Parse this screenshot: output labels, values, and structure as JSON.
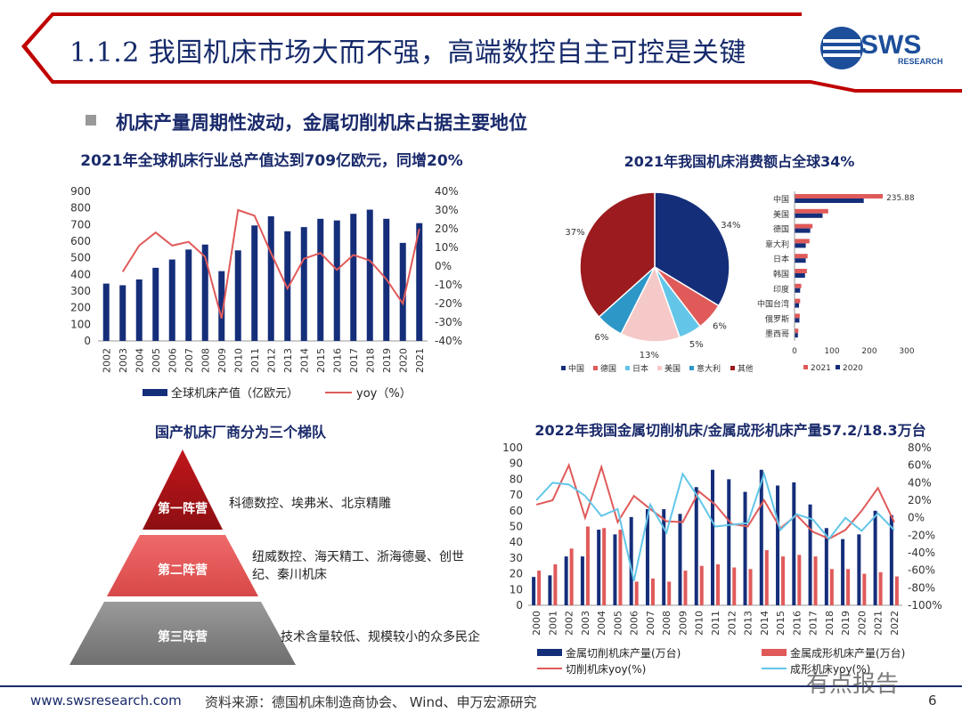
{
  "header": {
    "title": "1.1.2 我国机床市场大而不强，高端数控自主可控是关键",
    "subtitle": "机床产量周期性波动，金属切削机床占据主要地位",
    "logo_text": "SWS",
    "logo_sub": "RESEARCH"
  },
  "colors": {
    "navy": "#152e7a",
    "red": "#e05a5a",
    "darkred": "#9b1b1e",
    "lightblue": "#63c6e8",
    "pink": "#f6c9c9",
    "grey": "#7f7f7f"
  },
  "chart_data": [
    {
      "type": "bar",
      "title": "2021年全球机床行业总产值达到709亿欧元，同增20%",
      "categories": [
        "2002",
        "2003",
        "2004",
        "2005",
        "2006",
        "2007",
        "2008",
        "2009",
        "2010",
        "2011",
        "2012",
        "2013",
        "2014",
        "2015",
        "2016",
        "2017",
        "2018",
        "2019",
        "2020",
        "2021"
      ],
      "series": [
        {
          "name": "全球机床产值（亿欧元）",
          "type": "bar",
          "axis": "left",
          "values": [
            345,
            335,
            370,
            440,
            490,
            550,
            580,
            420,
            545,
            695,
            750,
            660,
            685,
            735,
            725,
            765,
            790,
            735,
            590,
            709
          ]
        },
        {
          "name": "yoy（%）",
          "type": "line",
          "axis": "right",
          "values": [
            null,
            -3,
            11,
            18,
            11,
            13,
            5,
            -28,
            30,
            27,
            7,
            -12,
            4,
            7,
            -2,
            6,
            3,
            -7,
            -20,
            20
          ]
        }
      ],
      "ylim": [
        0,
        900
      ],
      "yticks": [
        0,
        100,
        200,
        300,
        400,
        500,
        600,
        700,
        800,
        900
      ],
      "y2lim": [
        -40,
        40
      ],
      "y2ticks": [
        "-40%",
        "-30%",
        "-20%",
        "-10%",
        "0%",
        "10%",
        "20%",
        "30%",
        "40%"
      ]
    },
    {
      "type": "pie",
      "title": "2021年我国机床消费额占全球34%",
      "labels": [
        "中国",
        "德国",
        "日本",
        "美国",
        "意大利",
        "其他"
      ],
      "values": [
        34,
        6,
        5,
        13,
        6,
        37
      ],
      "slice_labels": [
        "34%",
        "6%",
        "5%",
        "13%",
        "6%",
        "37%"
      ]
    },
    {
      "type": "bar",
      "orientation": "horizontal",
      "categories": [
        "中国",
        "美国",
        "德国",
        "意大利",
        "日本",
        "韩国",
        "印度",
        "中国台湾",
        "俄罗斯",
        "墨西哥"
      ],
      "series": [
        {
          "name": "2021",
          "values": [
            235.88,
            90,
            48,
            40,
            35,
            33,
            18,
            15,
            14,
            10
          ]
        },
        {
          "name": "2020",
          "values": [
            185,
            75,
            42,
            30,
            30,
            28,
            15,
            12,
            13,
            9
          ]
        }
      ],
      "data_label": "235.88",
      "xlim": [
        0,
        300
      ],
      "xticks": [
        "0",
        "100",
        "200",
        "300"
      ]
    },
    {
      "type": "bar",
      "title": "2022年我国金属切削机床/金属成形机床产量57.2/18.3万台",
      "categories": [
        "2000",
        "2001",
        "2002",
        "2003",
        "2004",
        "2005",
        "2006",
        "2007",
        "2008",
        "2009",
        "2010",
        "2011",
        "2012",
        "2013",
        "2014",
        "2015",
        "2016",
        "2017",
        "2018",
        "2019",
        "2020",
        "2021",
        "2022"
      ],
      "series": [
        {
          "name": "金属切削机床产量(万台)",
          "type": "bar",
          "axis": "left",
          "values": [
            18,
            19,
            31,
            31,
            48,
            45,
            56,
            61,
            61,
            58,
            75,
            86,
            80,
            72,
            86,
            76,
            78,
            64,
            49,
            42,
            45,
            60,
            57.2
          ]
        },
        {
          "name": "金属成形机床产量(万台)",
          "type": "bar",
          "axis": "left",
          "values": [
            22,
            26,
            36,
            50,
            49,
            48,
            15,
            17,
            15,
            22,
            25,
            26,
            24,
            23,
            35,
            31,
            32,
            31,
            23,
            23,
            20,
            21,
            18.3
          ]
        },
        {
          "name": "切削机床yoy(%)",
          "type": "line",
          "axis": "right",
          "values": [
            15,
            20,
            60,
            0,
            58,
            -5,
            25,
            10,
            -4,
            -5,
            30,
            15,
            -7,
            -10,
            20,
            -12,
            3,
            -16,
            -24,
            -14,
            8,
            34,
            -5
          ]
        },
        {
          "name": "成形机床yoy(%)",
          "type": "line",
          "axis": "right",
          "values": [
            20,
            40,
            38,
            25,
            2,
            10,
            -72,
            15,
            -17,
            50,
            22,
            -10,
            -8,
            -6,
            50,
            -14,
            4,
            -2,
            -24,
            0,
            -15,
            5,
            -14
          ]
        }
      ],
      "ylim": [
        0,
        100
      ],
      "yticks": [
        0,
        10,
        20,
        30,
        40,
        50,
        60,
        70,
        80,
        90,
        100
      ],
      "y2lim": [
        -100,
        80
      ],
      "y2ticks": [
        "-100%",
        "-80%",
        "-60%",
        "-40%",
        "-20%",
        "0%",
        "20%",
        "40%",
        "60%",
        "80%"
      ]
    }
  ],
  "tiers": {
    "title": "国产机床厂商分为三个梯队",
    "items": [
      {
        "label": "第一阵营",
        "desc": "科德数控、埃弗米、北京精雕"
      },
      {
        "label": "第二阵营",
        "desc": "纽威数控、海天精工、浙海德曼、创世纪、秦川机床"
      },
      {
        "label": "第三阵营",
        "desc": "技术含量较低、规模较小的众多民企"
      }
    ]
  },
  "footer": {
    "url": "www.swsresearch.com",
    "source": "资料来源：德国机床制造商协会、 Wind、申万宏源研究",
    "page": "6",
    "watermark": "有点报告"
  }
}
